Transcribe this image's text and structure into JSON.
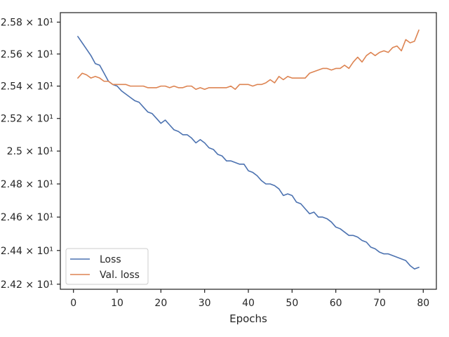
{
  "chart_data": {
    "type": "line",
    "title": "",
    "xlabel": "Epochs",
    "ylabel": "",
    "xlim": [
      -3,
      83
    ],
    "ylim": [
      24.17,
      25.86
    ],
    "x_ticks": [
      0,
      10,
      20,
      30,
      40,
      50,
      60,
      70,
      80
    ],
    "x_tick_labels": [
      "0",
      "10",
      "20",
      "30",
      "40",
      "50",
      "60",
      "70",
      "80"
    ],
    "y_ticks": [
      24.2,
      24.4,
      24.6,
      24.8,
      25.0,
      25.2,
      25.4,
      25.6,
      25.8
    ],
    "y_tick_labels": [
      "2.42 × 10¹",
      "2.44 × 10¹",
      "2.46 × 10¹",
      "2.48 × 10¹",
      "2.5 × 10¹",
      "2.52 × 10¹",
      "2.54 × 10¹",
      "2.56 × 10¹",
      "2.58 × 10¹"
    ],
    "y_scale": "log",
    "grid": false,
    "legend_position": "lower-left",
    "series": [
      {
        "name": "Loss",
        "color": "#4c72b0",
        "x": [
          1,
          2,
          3,
          4,
          5,
          6,
          7,
          8,
          9,
          10,
          11,
          12,
          13,
          14,
          15,
          16,
          17,
          18,
          19,
          20,
          21,
          22,
          23,
          24,
          25,
          26,
          27,
          28,
          29,
          30,
          31,
          32,
          33,
          34,
          35,
          36,
          37,
          38,
          39,
          40,
          41,
          42,
          43,
          44,
          45,
          46,
          47,
          48,
          49,
          50,
          51,
          52,
          53,
          54,
          55,
          56,
          57,
          58,
          59,
          60,
          61,
          62,
          63,
          64,
          65,
          66,
          67,
          68,
          69,
          70,
          71,
          72,
          73,
          74,
          75,
          76,
          77,
          78,
          79
        ],
        "values": [
          25.71,
          25.67,
          25.63,
          25.59,
          25.54,
          25.53,
          25.48,
          25.43,
          25.41,
          25.4,
          25.37,
          25.35,
          25.33,
          25.31,
          25.3,
          25.27,
          25.24,
          25.23,
          25.2,
          25.17,
          25.19,
          25.16,
          25.13,
          25.12,
          25.1,
          25.1,
          25.08,
          25.05,
          25.07,
          25.05,
          25.02,
          25.01,
          24.98,
          24.97,
          24.94,
          24.94,
          24.93,
          24.92,
          24.92,
          24.88,
          24.87,
          24.85,
          24.82,
          24.8,
          24.8,
          24.79,
          24.77,
          24.73,
          24.74,
          24.73,
          24.69,
          24.68,
          24.65,
          24.62,
          24.63,
          24.6,
          24.6,
          24.59,
          24.57,
          24.54,
          24.53,
          24.51,
          24.49,
          24.49,
          24.48,
          24.46,
          24.45,
          24.42,
          24.41,
          24.39,
          24.38,
          24.38,
          24.37,
          24.36,
          24.35,
          24.34,
          24.31,
          24.29,
          24.3
        ]
      },
      {
        "name": "Val. loss",
        "color": "#dd8452",
        "x": [
          1,
          2,
          3,
          4,
          5,
          6,
          7,
          8,
          9,
          10,
          11,
          12,
          13,
          14,
          15,
          16,
          17,
          18,
          19,
          20,
          21,
          22,
          23,
          24,
          25,
          26,
          27,
          28,
          29,
          30,
          31,
          32,
          33,
          34,
          35,
          36,
          37,
          38,
          39,
          40,
          41,
          42,
          43,
          44,
          45,
          46,
          47,
          48,
          49,
          50,
          51,
          52,
          53,
          54,
          55,
          56,
          57,
          58,
          59,
          60,
          61,
          62,
          63,
          64,
          65,
          66,
          67,
          68,
          69,
          70,
          71,
          72,
          73,
          74,
          75,
          76,
          77,
          78,
          79
        ],
        "values": [
          25.45,
          25.48,
          25.47,
          25.45,
          25.46,
          25.45,
          25.43,
          25.43,
          25.41,
          25.41,
          25.41,
          25.41,
          25.4,
          25.4,
          25.4,
          25.4,
          25.39,
          25.39,
          25.39,
          25.4,
          25.4,
          25.39,
          25.4,
          25.39,
          25.39,
          25.4,
          25.4,
          25.38,
          25.39,
          25.38,
          25.39,
          25.39,
          25.39,
          25.39,
          25.39,
          25.4,
          25.38,
          25.41,
          25.41,
          25.41,
          25.4,
          25.41,
          25.41,
          25.42,
          25.44,
          25.42,
          25.46,
          25.44,
          25.46,
          25.45,
          25.45,
          25.45,
          25.45,
          25.48,
          25.49,
          25.5,
          25.51,
          25.51,
          25.5,
          25.51,
          25.51,
          25.53,
          25.51,
          25.55,
          25.58,
          25.55,
          25.59,
          25.61,
          25.59,
          25.61,
          25.62,
          25.61,
          25.64,
          25.65,
          25.62,
          25.69,
          25.67,
          25.68,
          25.75
        ]
      }
    ]
  }
}
